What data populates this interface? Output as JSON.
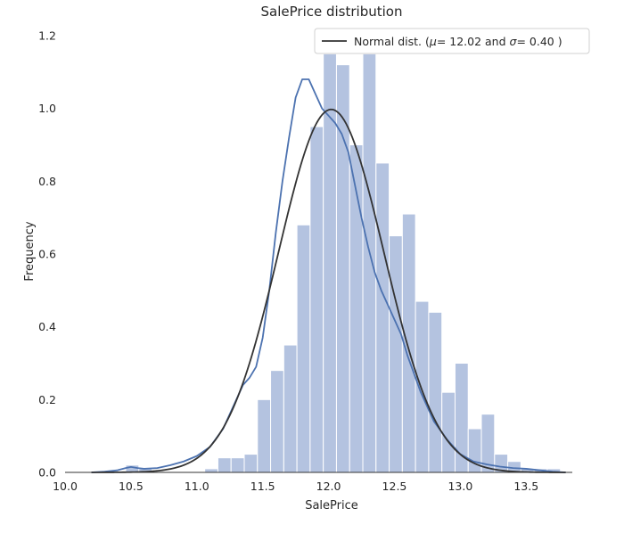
{
  "chart_data": {
    "type": "histogram",
    "title": "SalePrice distribution",
    "xlabel": "SalePrice",
    "ylabel": "Frequency",
    "xlim": [
      10.0,
      13.85
    ],
    "ylim": [
      0.0,
      1.2
    ],
    "xticks": [
      "10.0",
      "10.5",
      "11.0",
      "11.5",
      "12.0",
      "12.5",
      "13.0",
      "13.5"
    ],
    "yticks": [
      "0.0",
      "0.2",
      "0.4",
      "0.6",
      "0.8",
      "1.0",
      "1.2"
    ],
    "grid": false,
    "legend_position": "top-right",
    "legend": [
      "Normal dist. ($\\mu=$ 12.02 and $\\sigma=$ 0.40 )"
    ],
    "legend_display": {
      "prefix": "Normal dist. (",
      "mu_symbol": "μ",
      "mu_value": "=  12.02 and ",
      "sigma_symbol": "σ",
      "sigma_value": "=  0.40 )"
    },
    "colors": {
      "bars": "#b4c3e0",
      "kde": "#4c72b0",
      "normal": "#333333"
    },
    "histogram": {
      "bin_start": 10.46,
      "bin_width": 0.1,
      "values": [
        0.02,
        0.01,
        0.0,
        0.0,
        0.0,
        0.0,
        0.01,
        0.04,
        0.04,
        0.05,
        0.2,
        0.28,
        0.35,
        0.68,
        0.95,
        1.15,
        1.12,
        0.9,
        1.15,
        0.85,
        0.65,
        0.71,
        0.47,
        0.44,
        0.22,
        0.3,
        0.12,
        0.16,
        0.05,
        0.03,
        0.01,
        0.01,
        0.01
      ]
    },
    "series": [
      {
        "name": "KDE",
        "x": [
          10.2,
          10.3,
          10.4,
          10.46,
          10.5,
          10.55,
          10.6,
          10.7,
          10.8,
          10.9,
          11.0,
          11.1,
          11.2,
          11.3,
          11.35,
          11.4,
          11.45,
          11.5,
          11.55,
          11.6,
          11.65,
          11.7,
          11.75,
          11.8,
          11.85,
          11.9,
          11.95,
          12.0,
          12.05,
          12.1,
          12.15,
          12.2,
          12.25,
          12.3,
          12.35,
          12.4,
          12.45,
          12.5,
          12.55,
          12.6,
          12.65,
          12.7,
          12.75,
          12.8,
          12.9,
          13.0,
          13.1,
          13.2,
          13.3,
          13.4,
          13.5,
          13.6,
          13.7,
          13.8
        ],
        "y": [
          0.0,
          0.002,
          0.006,
          0.012,
          0.015,
          0.012,
          0.01,
          0.012,
          0.02,
          0.03,
          0.045,
          0.07,
          0.12,
          0.2,
          0.24,
          0.26,
          0.29,
          0.37,
          0.5,
          0.66,
          0.8,
          0.92,
          1.03,
          1.08,
          1.08,
          1.04,
          1.0,
          0.98,
          0.96,
          0.93,
          0.88,
          0.79,
          0.7,
          0.62,
          0.55,
          0.5,
          0.46,
          0.42,
          0.38,
          0.32,
          0.27,
          0.22,
          0.18,
          0.14,
          0.09,
          0.05,
          0.03,
          0.022,
          0.016,
          0.012,
          0.01,
          0.006,
          0.002,
          0.0
        ]
      },
      {
        "name": "Normal dist. ($\\mu=$ 12.02 and $\\sigma=$ 0.40 )",
        "mu": 12.02,
        "sigma": 0.4,
        "x_range": [
          10.2,
          13.8
        ]
      }
    ]
  }
}
